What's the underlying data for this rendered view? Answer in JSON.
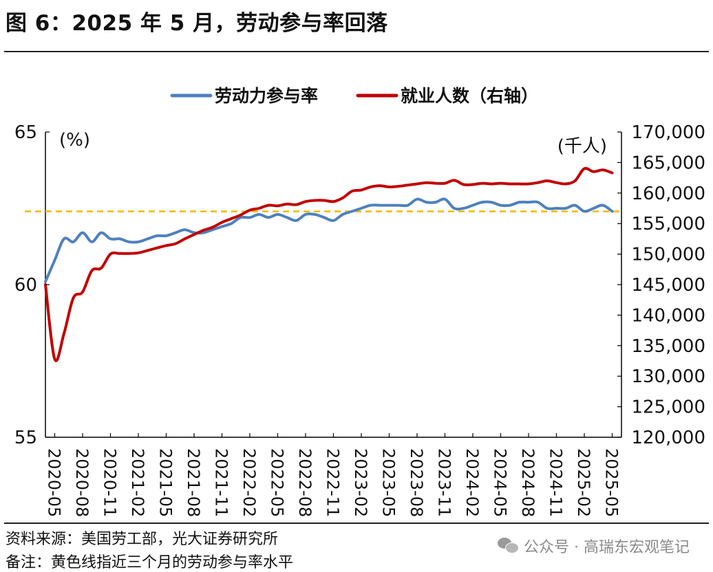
{
  "header": {
    "title": "图 6：2025 年 5 月，劳动参与率回落"
  },
  "footer": {
    "source": "资料来源：美国劳工部，光大证券研究所",
    "note": "备注：黄色线指近三个月的劳动参与率水平",
    "watermark": "公众号 · 高瑞东宏观笔记"
  },
  "chart_data": {
    "type": "line",
    "title": "",
    "legend": {
      "placement": "top-center",
      "entries": [
        "劳动力参与率",
        "就业人数（右轴）"
      ]
    },
    "grid": false,
    "y_left": {
      "unit": "(%)",
      "ylim": [
        55,
        65
      ],
      "ticks": [
        "55",
        "60",
        "65"
      ]
    },
    "y_right": {
      "unit": "(千人)",
      "ylim": [
        120000,
        170000
      ],
      "ticks": [
        "120,000",
        "125,000",
        "130,000",
        "135,000",
        "140,000",
        "145,000",
        "150,000",
        "155,000",
        "160,000",
        "165,000",
        "170,000"
      ]
    },
    "x_ticks": [
      "2020-05",
      "2020-08",
      "2020-11",
      "2021-02",
      "2021-05",
      "2021-08",
      "2021-11",
      "2022-02",
      "2022-05",
      "2022-08",
      "2022-11",
      "2023-02",
      "2023-05",
      "2023-08",
      "2023-11",
      "2024-02",
      "2024-05",
      "2024-08",
      "2024-11",
      "2025-02",
      "2025-05"
    ],
    "x_range": [
      "2020-04",
      "2025-06"
    ],
    "reference_line": {
      "value": 62.4,
      "axis": "left",
      "color": "#f0b800",
      "style": "dashed"
    },
    "series": [
      {
        "name": "劳动力参与率",
        "axis": "left",
        "color": "#4f81bd",
        "x": [
          "2020-04",
          "2020-05",
          "2020-06",
          "2020-07",
          "2020-08",
          "2020-09",
          "2020-10",
          "2020-11",
          "2020-12",
          "2021-01",
          "2021-02",
          "2021-03",
          "2021-04",
          "2021-05",
          "2021-06",
          "2021-07",
          "2021-08",
          "2021-09",
          "2021-10",
          "2021-11",
          "2021-12",
          "2022-01",
          "2022-02",
          "2022-03",
          "2022-04",
          "2022-05",
          "2022-06",
          "2022-07",
          "2022-08",
          "2022-09",
          "2022-10",
          "2022-11",
          "2022-12",
          "2023-01",
          "2023-02",
          "2023-03",
          "2023-04",
          "2023-05",
          "2023-06",
          "2023-07",
          "2023-08",
          "2023-09",
          "2023-10",
          "2023-11",
          "2023-12",
          "2024-01",
          "2024-02",
          "2024-03",
          "2024-04",
          "2024-05",
          "2024-06",
          "2024-07",
          "2024-08",
          "2024-09",
          "2024-10",
          "2024-11",
          "2024-12",
          "2025-01",
          "2025-02",
          "2025-03",
          "2025-04",
          "2025-05"
        ],
        "values": [
          60.1,
          60.8,
          61.5,
          61.4,
          61.7,
          61.4,
          61.7,
          61.5,
          61.5,
          61.4,
          61.4,
          61.5,
          61.6,
          61.6,
          61.7,
          61.8,
          61.7,
          61.7,
          61.8,
          61.9,
          62.0,
          62.2,
          62.2,
          62.3,
          62.2,
          62.3,
          62.2,
          62.1,
          62.3,
          62.3,
          62.2,
          62.1,
          62.3,
          62.4,
          62.5,
          62.6,
          62.6,
          62.6,
          62.6,
          62.6,
          62.8,
          62.7,
          62.7,
          62.8,
          62.5,
          62.5,
          62.6,
          62.7,
          62.7,
          62.6,
          62.6,
          62.7,
          62.7,
          62.7,
          62.5,
          62.5,
          62.5,
          62.6,
          62.4,
          62.5,
          62.6,
          62.4
        ]
      },
      {
        "name": "就业人数（右轴）",
        "axis": "right",
        "color": "#c00000",
        "x": [
          "2020-04",
          "2020-05",
          "2020-06",
          "2020-07",
          "2020-08",
          "2020-09",
          "2020-10",
          "2020-11",
          "2020-12",
          "2021-01",
          "2021-02",
          "2021-03",
          "2021-04",
          "2021-05",
          "2021-06",
          "2021-07",
          "2021-08",
          "2021-09",
          "2021-10",
          "2021-11",
          "2021-12",
          "2022-01",
          "2022-02",
          "2022-03",
          "2022-04",
          "2022-05",
          "2022-06",
          "2022-07",
          "2022-08",
          "2022-09",
          "2022-10",
          "2022-11",
          "2022-12",
          "2023-01",
          "2023-02",
          "2023-03",
          "2023-04",
          "2023-05",
          "2023-06",
          "2023-07",
          "2023-08",
          "2023-09",
          "2023-10",
          "2023-11",
          "2023-12",
          "2024-01",
          "2024-02",
          "2024-03",
          "2024-04",
          "2024-05",
          "2024-06",
          "2024-07",
          "2024-08",
          "2024-09",
          "2024-10",
          "2024-11",
          "2024-12",
          "2025-01",
          "2025-02",
          "2025-03",
          "2025-04",
          "2025-05"
        ],
        "values": [
          145000,
          132800,
          137000,
          142800,
          143800,
          147300,
          147700,
          150000,
          150100,
          150100,
          150200,
          150600,
          151000,
          151400,
          151700,
          152500,
          153200,
          153900,
          154400,
          155200,
          155800,
          156400,
          157200,
          157500,
          158000,
          157900,
          158200,
          158100,
          158600,
          158800,
          158800,
          158600,
          159200,
          160300,
          160500,
          161000,
          161200,
          161000,
          161100,
          161300,
          161500,
          161700,
          161600,
          161600,
          162100,
          161400,
          161400,
          161600,
          161500,
          161600,
          161500,
          161500,
          161500,
          161700,
          162000,
          161700,
          161500,
          162000,
          164000,
          163500,
          163800,
          163300
        ]
      }
    ]
  }
}
